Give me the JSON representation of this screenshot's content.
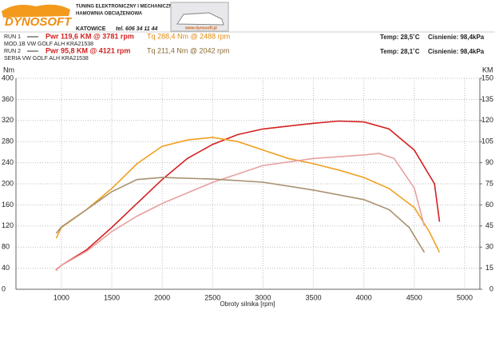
{
  "header": {
    "brand": "DYNOSOFT",
    "city": "KATOWICE",
    "phone": "tel. 606 34 11 44",
    "tagline1": "TUNING ELEKTRONICZNY I MECHANICZNY",
    "tagline2": "HAMOWNIA OBCIĄŻENIOWA",
    "website": "www.dynosoft.pl"
  },
  "runs": [
    {
      "label": "RUN 1",
      "pwr": "Pwr 119,6 KM @ 3781 rpm",
      "tq": "Tq 288,4 Nm @ 2488 rpm",
      "desc": "MOD.1B VW GOLF ALH KRA21538",
      "temp": "Temp: 28,5˚C",
      "pressure": "Cisnienie: 98,4kPa"
    },
    {
      "label": "RUN 2",
      "pwr": "Pwr  95,8 KM @ 4121 rpm",
      "tq": "Tq 211,4 Nm @ 2042 rpm",
      "desc": "SERIA VW GOLF ALH KRA21538",
      "temp": "Temp: 28,1˚C",
      "pressure": "Cisnienie: 98,4kPa"
    }
  ],
  "chart_data": {
    "type": "line",
    "x_label": "Obroty silnika [rpm]",
    "y_label": "Nm",
    "y2_label": "KM",
    "grid": true,
    "xlim": [
      550,
      5150
    ],
    "xticks": [
      1000,
      1500,
      2000,
      2500,
      3000,
      3500,
      4000,
      4500,
      5000
    ],
    "ylim": [
      0,
      400
    ],
    "yticks": [
      0,
      40,
      80,
      120,
      160,
      200,
      240,
      280,
      320,
      360,
      400
    ],
    "y2lim": [
      0,
      150
    ],
    "y2ticks": [
      0,
      15,
      30,
      45,
      60,
      75,
      90,
      105,
      120,
      135,
      150
    ],
    "series": [
      {
        "color": "#d42020",
        "axis": "y2",
        "x": [
          945,
          1000,
          1250,
          1500,
          1750,
          2000,
          2250,
          2500,
          2750,
          3000,
          3250,
          3500,
          3750,
          4000,
          4250,
          4500,
          4700,
          4750
        ],
        "values": [
          13.6,
          17,
          28,
          44,
          61,
          78,
          93,
          103,
          110,
          114,
          116,
          118,
          119.6,
          119,
          114,
          99,
          75,
          48
        ]
      },
      {
        "color": "#f0a020",
        "x": [
          950,
          1000,
          1250,
          1500,
          1750,
          2000,
          2250,
          2500,
          2750,
          3000,
          3250,
          3500,
          3750,
          4000,
          4250,
          4500,
          4650,
          4750
        ],
        "values": [
          97,
          117,
          151,
          191,
          238,
          271,
          283,
          288,
          280,
          264,
          248,
          238,
          226,
          212,
          191,
          155,
          109,
          70
        ]
      },
      {
        "color": "#e8a0a0",
        "axis": "y2",
        "x": [
          950,
          1000,
          1250,
          1500,
          1750,
          2000,
          2500,
          3000,
          3500,
          4000,
          4150,
          4300,
          4500,
          4600
        ],
        "values": [
          13.6,
          17,
          27,
          41,
          52,
          61,
          76,
          88,
          93,
          95.5,
          96.6,
          93,
          72,
          45
        ]
      },
      {
        "color": "#a89070",
        "x": [
          950,
          1000,
          1250,
          1500,
          1750,
          2000,
          2500,
          3000,
          3500,
          4000,
          4250,
          4450,
          4600
        ],
        "values": [
          106,
          118,
          151,
          185,
          208,
          212,
          209,
          203,
          188,
          170,
          151,
          117,
          70
        ]
      }
    ]
  }
}
